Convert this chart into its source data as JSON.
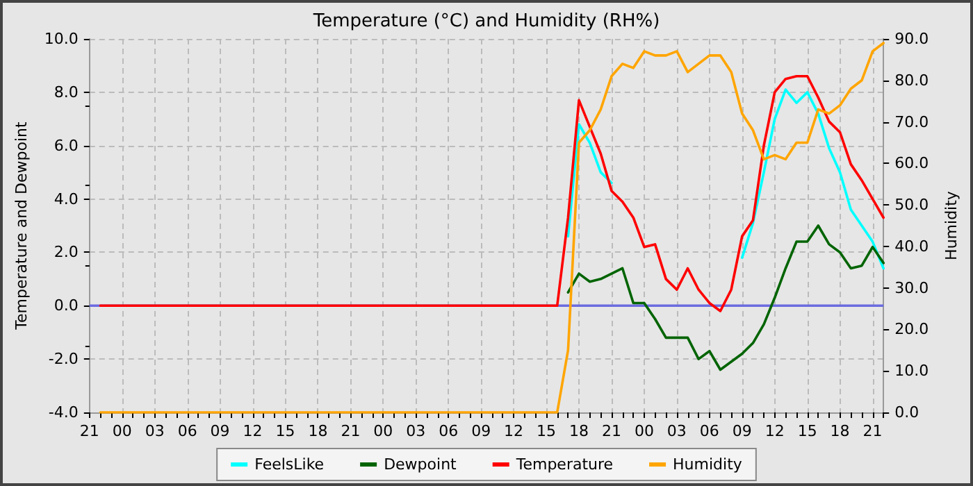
{
  "chart_data": {
    "type": "line",
    "title": "Temperature (°C) and Humidity (RH%)",
    "ylabel": "Temperature and Dewpoint",
    "y2label": "Humidity",
    "categories": [
      "21",
      null,
      null,
      "00",
      null,
      null,
      "03",
      null,
      null,
      "06",
      null,
      null,
      "09",
      null,
      null,
      "12",
      null,
      null,
      "15",
      null,
      null,
      "18",
      null,
      null,
      "21",
      null,
      null,
      "00",
      null,
      null,
      "03",
      null,
      null,
      "06",
      null,
      null,
      "09",
      null,
      null,
      "12",
      null,
      null,
      "15",
      null,
      null,
      "18",
      null,
      null,
      "21",
      null,
      null,
      "00",
      null,
      null,
      "03",
      null,
      null,
      "06",
      null,
      null,
      "09",
      null,
      null,
      "12",
      null,
      null,
      "15",
      null,
      null,
      "18",
      null,
      null,
      "21",
      null
    ],
    "ylim": [
      -4,
      10
    ],
    "yticks": [
      {
        "value": -4,
        "label": "-4.0"
      },
      {
        "value": -2,
        "label": "-2.0"
      },
      {
        "value": 0,
        "label": "0.0"
      },
      {
        "value": 2,
        "label": "2.0"
      },
      {
        "value": 4,
        "label": "4.0"
      },
      {
        "value": 6,
        "label": "6.0"
      },
      {
        "value": 8,
        "label": "8.0"
      },
      {
        "value": 10,
        "label": "10.0"
      }
    ],
    "y2lim": [
      0,
      90
    ],
    "y2ticks": [
      {
        "value": 0,
        "label": "0.0"
      },
      {
        "value": 10,
        "label": "10.0"
      },
      {
        "value": 20,
        "label": "20.0"
      },
      {
        "value": 30,
        "label": "30.0"
      },
      {
        "value": 40,
        "label": "40.0"
      },
      {
        "value": 50,
        "label": "50.0"
      },
      {
        "value": 60,
        "label": "60.0"
      },
      {
        "value": 70,
        "label": "70.0"
      },
      {
        "value": 80,
        "label": "80.0"
      },
      {
        "value": 90,
        "label": "90.0"
      }
    ],
    "grid": true,
    "legend": "bottom",
    "marker": "none",
    "line_style": "solid",
    "ref_lines": [
      {
        "axis": "y",
        "value": 0,
        "color": "#6b6be0"
      }
    ],
    "series": [
      {
        "name": "FeelsLike",
        "color": "#00ffff",
        "values": [
          null,
          null,
          null,
          null,
          null,
          null,
          null,
          null,
          null,
          null,
          null,
          null,
          null,
          null,
          null,
          null,
          null,
          null,
          null,
          null,
          null,
          null,
          null,
          null,
          null,
          null,
          null,
          null,
          null,
          null,
          null,
          null,
          null,
          null,
          null,
          null,
          null,
          null,
          null,
          null,
          null,
          null,
          null,
          null,
          2.6,
          6.8,
          6.1,
          5.0,
          4.6,
          null,
          null,
          null,
          null,
          null,
          null,
          null,
          null,
          null,
          null,
          null,
          1.8,
          3.1,
          5.0,
          7.0,
          8.1,
          7.6,
          8.0,
          7.2,
          5.9,
          5.0,
          3.6,
          3.0,
          2.4,
          1.4
        ]
      },
      {
        "name": "Dewpoint",
        "color": "#006400",
        "values": [
          null,
          null,
          null,
          null,
          null,
          null,
          null,
          null,
          null,
          null,
          null,
          null,
          null,
          null,
          null,
          null,
          null,
          null,
          null,
          null,
          null,
          null,
          null,
          null,
          null,
          null,
          null,
          null,
          null,
          null,
          null,
          null,
          null,
          null,
          null,
          null,
          null,
          null,
          null,
          null,
          null,
          null,
          null,
          null,
          0.5,
          1.2,
          0.9,
          1.0,
          1.2,
          1.4,
          0.1,
          0.1,
          -0.5,
          -1.2,
          -1.2,
          -1.2,
          -2.0,
          -1.7,
          -2.4,
          -2.1,
          -1.8,
          -1.4,
          -0.7,
          0.3,
          1.4,
          2.4,
          2.4,
          3.0,
          2.3,
          2.0,
          1.4,
          1.5,
          2.2,
          1.6
        ]
      },
      {
        "name": "Temperature",
        "color": "#ff0000",
        "values": [
          null,
          0,
          0,
          0,
          0,
          0,
          0,
          0,
          0,
          0,
          0,
          0,
          0,
          0,
          0,
          0,
          0,
          0,
          0,
          0,
          0,
          0,
          0,
          0,
          0,
          0,
          0,
          0,
          0,
          0,
          0,
          0,
          0,
          0,
          0,
          0,
          0,
          0,
          0,
          0,
          0,
          0,
          0,
          0,
          3.3,
          7.7,
          6.7,
          5.7,
          4.3,
          3.9,
          3.3,
          2.2,
          2.3,
          1.0,
          0.6,
          1.4,
          0.6,
          0.1,
          -0.2,
          0.6,
          2.6,
          3.2,
          6.0,
          8.0,
          8.5,
          8.6,
          8.6,
          7.8,
          6.9,
          6.5,
          5.3,
          4.7,
          4.0,
          3.3
        ]
      },
      {
        "name": "Humidity",
        "color": "#ffa500",
        "axis": "y2",
        "values": [
          null,
          0,
          0,
          0,
          0,
          0,
          0,
          0,
          0,
          0,
          0,
          0,
          0,
          0,
          0,
          0,
          0,
          0,
          0,
          0,
          0,
          0,
          0,
          0,
          0,
          0,
          0,
          0,
          0,
          0,
          0,
          0,
          0,
          0,
          0,
          0,
          0,
          0,
          0,
          0,
          0,
          0,
          0,
          0,
          15,
          65,
          68,
          73,
          81,
          84,
          83,
          87,
          86,
          86,
          87,
          82,
          84,
          86,
          86,
          82,
          72,
          68,
          61,
          62,
          61,
          65,
          65,
          73,
          72,
          74,
          78,
          80,
          87,
          89
        ]
      }
    ]
  }
}
